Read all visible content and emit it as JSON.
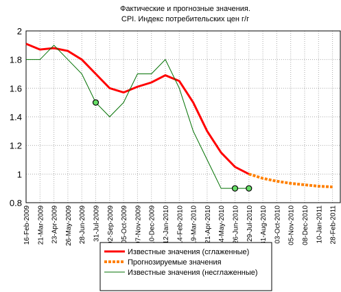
{
  "chart_data": {
    "type": "line",
    "title": "Фактические и прогнозные значения.",
    "subtitle": "CPI. Индекс потребительских цен г/г",
    "categories": [
      "16-Feb-2009",
      "21-Mar-2009",
      "23-Apr-2009",
      "26-May-2009",
      "28-Jun-2009",
      "31-Jul-2009",
      "02-Sep-2009",
      "05-Oct-2009",
      "07-Nov-2009",
      "10-Dec-2009",
      "12-Jan-2010",
      "14-Feb-2010",
      "19-Mar-2010",
      "21-Apr-2010",
      "24-May-2010",
      "26-Jun-2010",
      "29-Jul-2010",
      "31-Aug-2010",
      "03-Oct-2010",
      "05-Nov-2010",
      "08-Dec-2010",
      "10-Jan-2011",
      "28-Feb-2011"
    ],
    "series": [
      {
        "name": "Известные значения (сглаженные)",
        "color": "#ff0000",
        "width": 3,
        "values": [
          1.91,
          1.87,
          1.88,
          1.86,
          1.8,
          1.7,
          1.6,
          1.57,
          1.61,
          1.64,
          1.69,
          1.65,
          1.5,
          1.3,
          1.15,
          1.05,
          1.0,
          null,
          null,
          null,
          null,
          null,
          null
        ]
      },
      {
        "name": "Прогнозируемые значения",
        "color": "#ff8000",
        "width": 4,
        "dashed": true,
        "values": [
          null,
          null,
          null,
          null,
          null,
          null,
          null,
          null,
          null,
          null,
          null,
          null,
          null,
          null,
          null,
          null,
          1.0,
          0.97,
          0.95,
          0.935,
          0.925,
          0.915,
          0.91
        ]
      },
      {
        "name": "Известные значения (несглаженные)",
        "color": "#007000",
        "width": 1,
        "values": [
          1.8,
          1.8,
          1.9,
          1.8,
          1.7,
          1.5,
          1.4,
          1.5,
          1.7,
          1.7,
          1.8,
          1.6,
          1.3,
          1.1,
          0.9,
          0.9,
          0.9,
          null,
          null,
          null,
          null,
          null,
          null
        ],
        "markers": [
          5,
          15,
          16
        ]
      }
    ],
    "ylim": [
      0.8,
      2
    ],
    "yticks": [
      {
        "value": 0.8,
        "label": "0.8"
      },
      1,
      1.2,
      1.4,
      1.6,
      1.8,
      2
    ],
    "grid": true
  }
}
